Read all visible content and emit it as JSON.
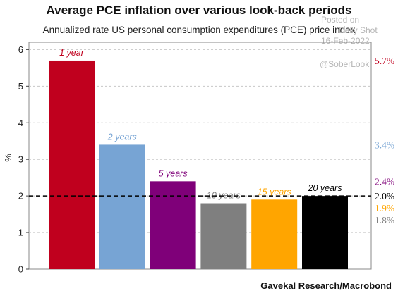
{
  "title": "Average PCE inflation over various look-back periods",
  "subtitle": "Annualized rate US personal consumption expenditures (PCE) price index",
  "source": "Gavekal Research/Macrobond",
  "watermark": {
    "line1": "Posted on",
    "line2": "Daily Shot",
    "line3": "16-Feb-2022",
    "line4": "@SoberLook"
  },
  "colors": {
    "1 year": "#c0001e",
    "2 years": "#77a4d4",
    "5 years": "#7f0079",
    "10 years": "#7f7f7f",
    "15 years": "#ffa500",
    "20 years": "#000000"
  },
  "chart_data": {
    "type": "bar",
    "title": "Average PCE inflation over various look-back periods",
    "subtitle": "Annualized rate US personal consumption expenditures (PCE) price index",
    "ylabel": "%",
    "ylim": [
      0,
      6.2
    ],
    "yticks": [
      "0",
      "1",
      "2",
      "3",
      "4",
      "5",
      "6"
    ],
    "grid": true,
    "reference_line": 2.0,
    "categories": [
      "1 year",
      "2 years",
      "5 years",
      "10 years",
      "15 years",
      "20 years"
    ],
    "values": [
      5.7,
      3.4,
      2.4,
      1.8,
      1.9,
      2.0
    ],
    "right_labels": [
      {
        "text": "5.7%",
        "value": 5.7,
        "series": "1 year"
      },
      {
        "text": "3.4%",
        "value": 3.4,
        "series": "2 years"
      },
      {
        "text": "2.4%",
        "value": 2.4,
        "series": "5 years"
      },
      {
        "text": "2.0%",
        "value": 2.0,
        "series": "20 years"
      },
      {
        "text": "1.9%",
        "value": 1.9,
        "series": "15 years"
      },
      {
        "text": "1.8%",
        "value": 1.8,
        "series": "10 years"
      }
    ]
  }
}
